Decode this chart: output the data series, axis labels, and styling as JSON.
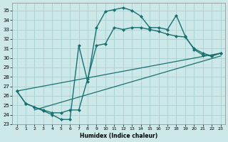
{
  "xlabel": "Humidex (Indice chaleur)",
  "xlim": [
    -0.5,
    23.5
  ],
  "ylim": [
    23,
    35.8
  ],
  "yticks": [
    23,
    24,
    25,
    26,
    27,
    28,
    29,
    30,
    31,
    32,
    33,
    34,
    35
  ],
  "xticks": [
    0,
    1,
    2,
    3,
    4,
    5,
    6,
    7,
    8,
    9,
    10,
    11,
    12,
    13,
    14,
    15,
    16,
    17,
    18,
    19,
    20,
    21,
    22,
    23
  ],
  "bg_color": "#cce8e8",
  "grid_color": "#aad0d0",
  "line_color": "#1a7070",
  "lines": [
    {
      "x": [
        0,
        1,
        2,
        3,
        4,
        5,
        6,
        7,
        8,
        9,
        10,
        11,
        12,
        13,
        14,
        15,
        16,
        17,
        18,
        19,
        20,
        21,
        22,
        23
      ],
      "y": [
        26.5,
        25.2,
        24.8,
        24.4,
        24.0,
        23.5,
        23.5,
        31.3,
        27.5,
        33.2,
        34.9,
        35.1,
        35.3,
        35.0,
        34.4,
        33.2,
        33.2,
        33.0,
        34.5,
        32.3,
        30.9,
        30.3,
        30.2,
        30.5
      ],
      "marker": "D",
      "ms": 2.0,
      "lw": 1.0,
      "ls": "-"
    },
    {
      "x": [
        0,
        1,
        2,
        3,
        4,
        5,
        6,
        7,
        8,
        9,
        10,
        11,
        12,
        13,
        14,
        15,
        16,
        17,
        18,
        19,
        20,
        21,
        22,
        23
      ],
      "y": [
        26.5,
        25.2,
        24.8,
        24.5,
        24.2,
        24.2,
        24.5,
        24.5,
        27.8,
        31.3,
        31.5,
        33.2,
        33.0,
        33.2,
        33.2,
        33.0,
        32.8,
        32.5,
        32.3,
        32.2,
        31.0,
        30.5,
        30.2,
        30.5
      ],
      "marker": "D",
      "ms": 2.0,
      "lw": 1.0,
      "ls": "-"
    },
    {
      "x": [
        0,
        23
      ],
      "y": [
        26.5,
        30.5
      ],
      "marker": null,
      "ms": 0,
      "lw": 0.9,
      "ls": "-"
    },
    {
      "x": [
        2,
        23
      ],
      "y": [
        24.5,
        30.2
      ],
      "marker": null,
      "ms": 0,
      "lw": 0.9,
      "ls": "-"
    }
  ]
}
